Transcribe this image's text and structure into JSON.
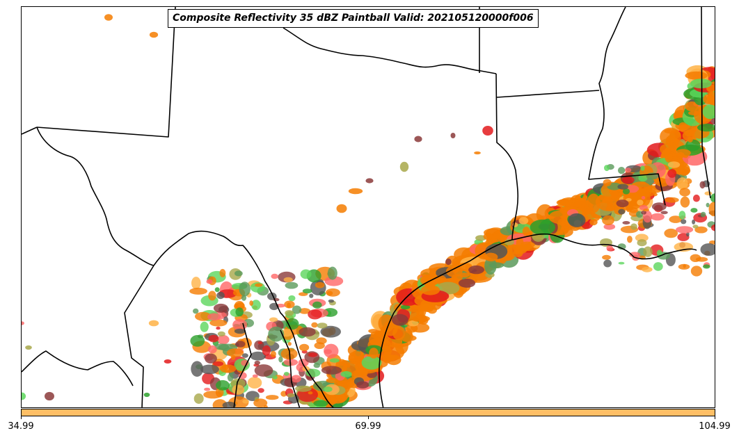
{
  "title": "Composite Reflectivity 35 dBZ Paintball Valid: 202105120000f006",
  "map": {
    "region": "Texas, Gulf Coast and northern Mexico",
    "colors": {
      "orange": "#f57c00",
      "light_orange": "#ffb347",
      "red": "#e31a1c",
      "salmon": "#ff6666",
      "green": "#2ca02c",
      "light_green": "#5cd65c",
      "dark_green": "#5a9a5a",
      "olive": "#a8a84a",
      "brown": "#8b3a3a",
      "gray": "#555555"
    }
  },
  "colorbar": {
    "color": "#ffbf66",
    "ticks": [
      "34.99",
      "69.99",
      "104.99"
    ]
  }
}
